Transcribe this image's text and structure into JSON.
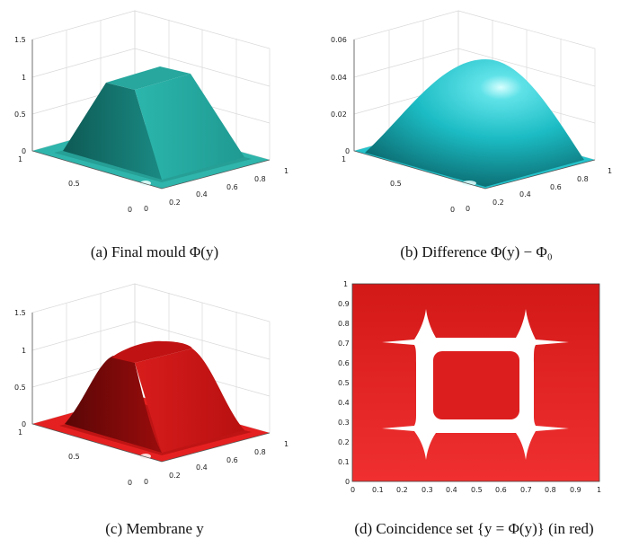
{
  "figure": {
    "panels": [
      {
        "id": "a",
        "caption": "(a) Final mould Φ(y)",
        "surface": "final-mould",
        "color": "#22a8a0",
        "z_ticks": [
          "0",
          "0.5",
          "1",
          "1.5"
        ],
        "x_ticks": [
          "0",
          "0.2",
          "0.4",
          "0.6",
          "0.8",
          "1"
        ],
        "y_ticks": [
          "0",
          "0.5",
          "1"
        ]
      },
      {
        "id": "b",
        "caption": "(b) Difference Φ(y) − Φ₀",
        "surface": "difference",
        "color": "#1fc4cc",
        "z_ticks": [
          "0",
          "0.02",
          "0.04",
          "0.06"
        ],
        "x_ticks": [
          "0",
          "0.2",
          "0.4",
          "0.6",
          "0.8",
          "1"
        ],
        "y_ticks": [
          "0",
          "0.5",
          "1"
        ]
      },
      {
        "id": "c",
        "caption": "(c) Membrane y",
        "surface": "membrane",
        "color": "#d41818",
        "z_ticks": [
          "0",
          "0.5",
          "1",
          "1.5"
        ],
        "x_ticks": [
          "0",
          "0.2",
          "0.4",
          "0.6",
          "0.8",
          "1"
        ],
        "y_ticks": [
          "0",
          "0.5",
          "1"
        ]
      },
      {
        "id": "d",
        "caption": "(d) Coincidence set {y = Φ(y)} (in red)",
        "surface": "coincidence-set",
        "color": "#e52222",
        "x_ticks": [
          "0",
          "0.1",
          "0.2",
          "0.3",
          "0.4",
          "0.5",
          "0.6",
          "0.7",
          "0.8",
          "0.9",
          "1"
        ],
        "y_ticks": [
          "0",
          "0.1",
          "0.2",
          "0.3",
          "0.4",
          "0.5",
          "0.6",
          "0.7",
          "0.8",
          "0.9",
          "1"
        ]
      }
    ]
  }
}
